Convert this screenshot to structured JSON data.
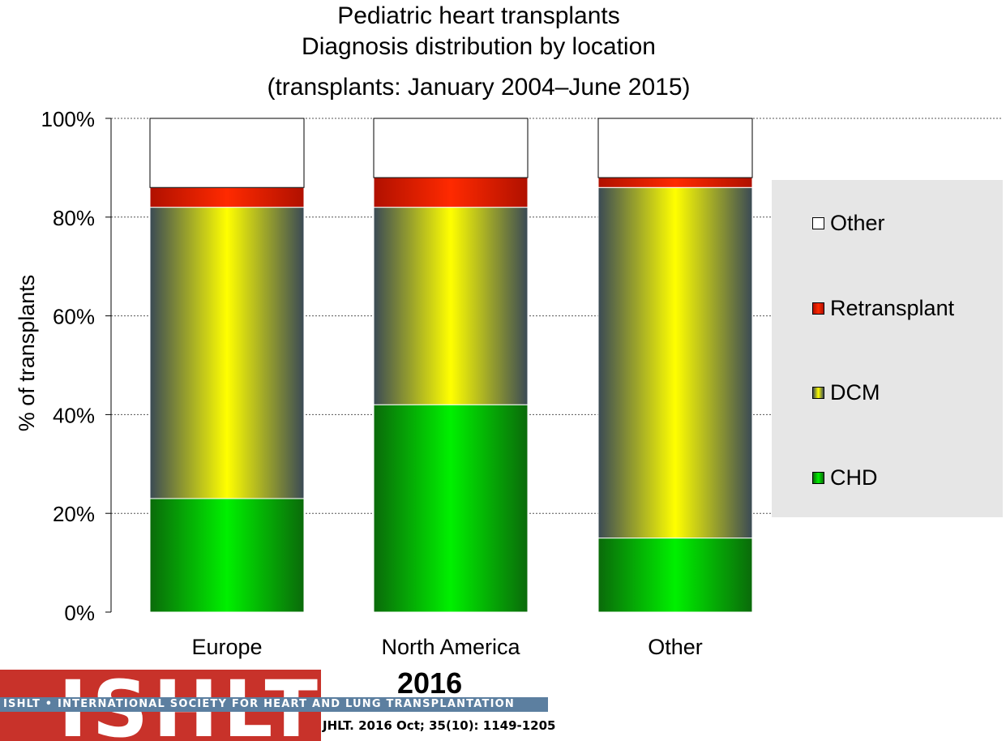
{
  "chart_data": {
    "type": "bar",
    "stacked": true,
    "percent": true,
    "title_lines": [
      "Pediatric heart transplants",
      "Diagnosis distribution by location",
      "(transplants: January 2004–June 2015)"
    ],
    "ylabel": "% of transplants",
    "xlabel": "",
    "ylim": [
      0,
      100
    ],
    "yticks": [
      "0%",
      "20%",
      "40%",
      "60%",
      "80%",
      "100%"
    ],
    "categories": [
      "Europe",
      "North America",
      "Other"
    ],
    "series": [
      {
        "name": "CHD",
        "values": [
          23,
          42,
          15
        ],
        "color": "#00e000"
      },
      {
        "name": "DCM",
        "values": [
          59,
          40,
          71
        ],
        "color": "#f5f000"
      },
      {
        "name": "Retransplant",
        "values": [
          4,
          6,
          2
        ],
        "color": "#ff2000"
      },
      {
        "name": "Other",
        "values": [
          14,
          12,
          12
        ],
        "color": "#ffffff"
      }
    ],
    "grid": "horizontal dashed",
    "legend_position": "right"
  },
  "legend": [
    "Other",
    "Retransplant",
    "DCM",
    "CHD"
  ],
  "footer": {
    "logo_text": "ISHLT",
    "banner": "ISHLT • INTERNATIONAL SOCIETY FOR HEART AND LUNG TRANSPLANTATION",
    "year": "2016",
    "citation": "JHLT. 2016 Oct; 35(10): 1149-1205"
  }
}
